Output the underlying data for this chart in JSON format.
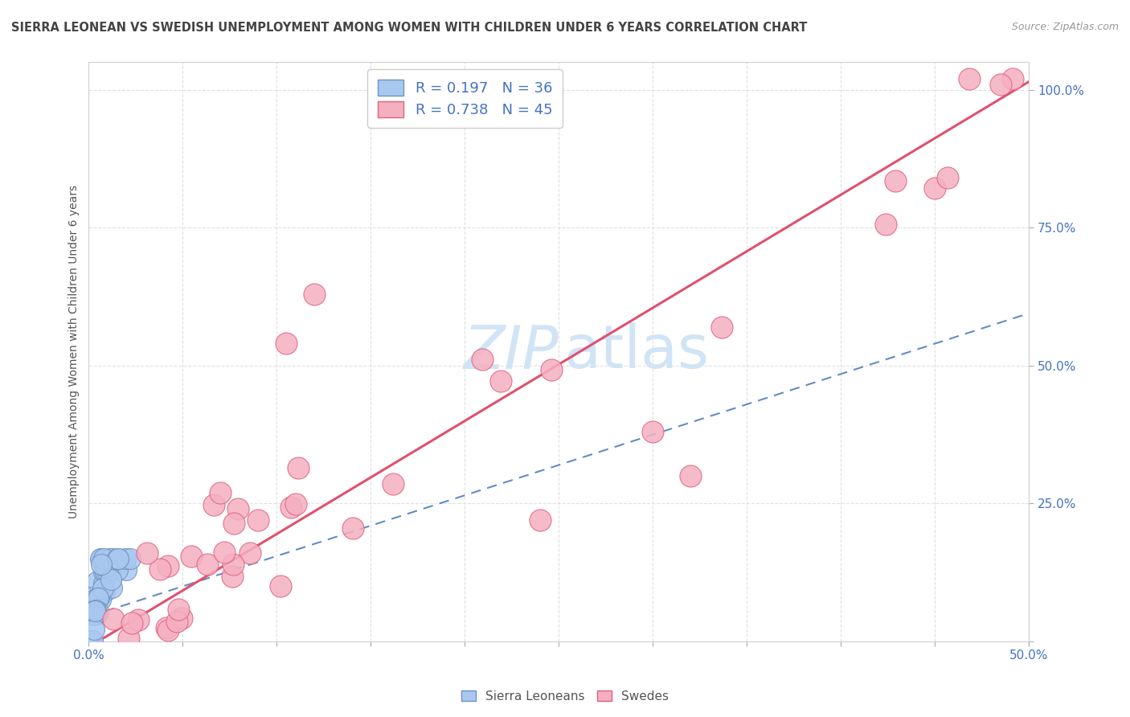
{
  "title": "SIERRA LEONEAN VS SWEDISH UNEMPLOYMENT AMONG WOMEN WITH CHILDREN UNDER 6 YEARS CORRELATION CHART",
  "source": "Source: ZipAtlas.com",
  "ylabel": "Unemployment Among Women with Children Under 6 years",
  "sierra_color": "#a8c8f0",
  "swedes_color": "#f5b0c0",
  "sierra_edge_color": "#7090c0",
  "swedes_edge_color": "#e06080",
  "sierra_line_color": "#5080c0",
  "swedes_line_color": "#e05070",
  "background_color": "#ffffff",
  "grid_color": "#cccccc",
  "text_color_blue": "#4472c4",
  "text_color_dark": "#444444",
  "xlim": [
    0,
    0.5
  ],
  "ylim": [
    0,
    1.05
  ],
  "watermark_color": "#d0e4f5",
  "legend_r1": "R = 0.197",
  "legend_n1": "N = 36",
  "legend_r2": "R = 0.738",
  "legend_n2": "N = 45",
  "legend_label1": "Sierra Leoneans",
  "legend_label2": "Swedes",
  "sierra_line_slope": 1.1,
  "sierra_line_intercept": 0.045,
  "swedes_line_slope": 2.05,
  "swedes_line_intercept": -0.01
}
